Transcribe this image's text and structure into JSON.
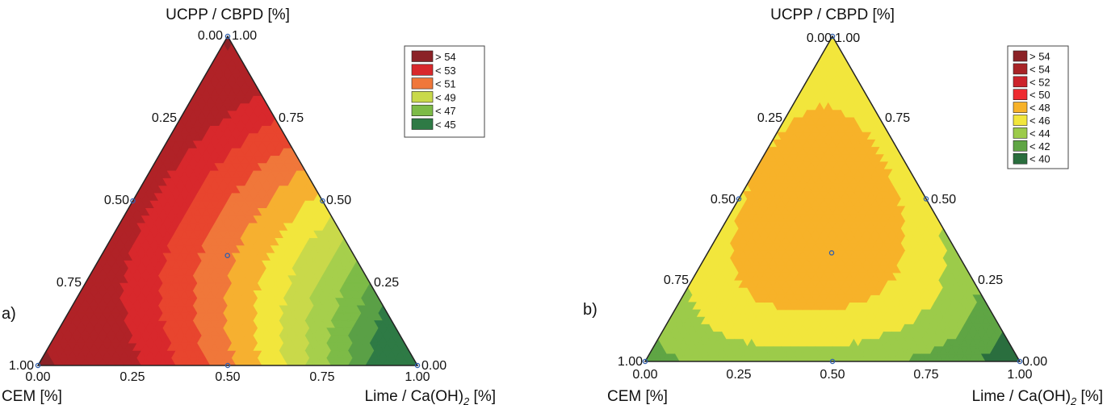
{
  "chart_data": [
    {
      "type": "ternary-contour",
      "panel_label": "a)",
      "top_axis_title": "UCPP / CBPD [%]",
      "left_axis_title": "CEM [%]",
      "right_axis_title": "Lime / Ca(OH)",
      "right_axis_subscript": "2",
      "right_axis_suffix": " [%]",
      "tick_labels": {
        "top_left": "0.00",
        "top_right": "1.00",
        "left_025": "0.25",
        "left_050": "0.50",
        "left_075": "0.75",
        "right_075": "0.75",
        "right_050": "0.50",
        "right_025": "0.25",
        "bottom_000": "0.00",
        "bottom_025": "0.25",
        "bottom_050": "0.50",
        "bottom_075": "0.75",
        "bottom_100": "1.00",
        "left_corner": "1.00",
        "right_corner": "0.00"
      },
      "legend": [
        {
          "label": "> 54",
          "color": "#8b2227"
        },
        {
          "label": "< 53",
          "color": "#d8282c"
        },
        {
          "label": "< 51",
          "color": "#f0773a"
        },
        {
          "label": "< 49",
          "color": "#c9d94a"
        },
        {
          "label": "< 47",
          "color": "#7dbb47"
        },
        {
          "label": "< 45",
          "color": "#2e7a45"
        }
      ],
      "levels": [
        {
          "value": 45,
          "color": "#2e7a45"
        },
        {
          "value": 46,
          "color": "#5aa046"
        },
        {
          "value": 47,
          "color": "#7dbb47"
        },
        {
          "value": 48,
          "color": "#a6cf4c"
        },
        {
          "value": 49,
          "color": "#c9d94a"
        },
        {
          "value": 50,
          "color": "#f2e63c"
        },
        {
          "value": 51,
          "color": "#f6b030"
        },
        {
          "value": 52,
          "color": "#f0773a"
        },
        {
          "value": 53,
          "color": "#e8452e"
        },
        {
          "value": 54,
          "color": "#d8282c"
        },
        {
          "value": 56,
          "color": "#b02227"
        },
        {
          "value": 100,
          "color": "#8b2227"
        }
      ],
      "design_points": [
        {
          "top": 1,
          "left": 0,
          "right": 0
        },
        {
          "top": 0,
          "left": 1,
          "right": 0
        },
        {
          "top": 0,
          "left": 0,
          "right": 1
        },
        {
          "top": 0.5,
          "left": 0.5,
          "right": 0
        },
        {
          "top": 0.5,
          "left": 0,
          "right": 0.5
        },
        {
          "top": 0,
          "left": 0.5,
          "right": 0.5
        },
        {
          "top": 0.333,
          "left": 0.333,
          "right": 0.333
        }
      ]
    },
    {
      "type": "ternary-contour",
      "panel_label": "b)",
      "top_axis_title": "UCPP / CBPD [%]",
      "left_axis_title": "CEM [%]",
      "right_axis_title": "Lime / Ca(OH)",
      "right_axis_subscript": "2",
      "right_axis_suffix": " [%]",
      "tick_labels": {
        "top_left": "0.00",
        "top_right": "1.00",
        "left_025": "0.25",
        "left_050": "0.50",
        "left_075": "0.75",
        "right_075": "0.75",
        "right_050": "0.50",
        "right_025": "0.25",
        "bottom_000": "0.00",
        "bottom_025": "0.25",
        "bottom_050": "0.50",
        "bottom_075": "0.75",
        "bottom_100": "1.00",
        "left_corner": "1.00",
        "right_corner": "0.00"
      },
      "legend": [
        {
          "label": "> 54",
          "color": "#8b2227"
        },
        {
          "label": "< 54",
          "color": "#a82326"
        },
        {
          "label": "< 52",
          "color": "#cc232b"
        },
        {
          "label": "< 50",
          "color": "#ee2b30"
        },
        {
          "label": "< 48",
          "color": "#f7b229"
        },
        {
          "label": "< 46",
          "color": "#f2e63c"
        },
        {
          "label": "< 44",
          "color": "#9ccb4a"
        },
        {
          "label": "< 42",
          "color": "#5fa544"
        },
        {
          "label": "< 40",
          "color": "#2a6e3e"
        }
      ],
      "levels": [
        {
          "value": 40,
          "color": "#2a6e3e"
        },
        {
          "value": 42,
          "color": "#5fa544"
        },
        {
          "value": 44,
          "color": "#9ccb4a"
        },
        {
          "value": 46,
          "color": "#f2e63c"
        },
        {
          "value": 48,
          "color": "#f7b229"
        },
        {
          "value": 50,
          "color": "#ee2b30"
        },
        {
          "value": 52,
          "color": "#cc232b"
        },
        {
          "value": 54,
          "color": "#a82326"
        },
        {
          "value": 100,
          "color": "#8b2227"
        }
      ],
      "design_points": [
        {
          "top": 1,
          "left": 0,
          "right": 0
        },
        {
          "top": 0,
          "left": 1,
          "right": 0
        },
        {
          "top": 0,
          "left": 0,
          "right": 1
        },
        {
          "top": 0.5,
          "left": 0.5,
          "right": 0
        },
        {
          "top": 0.5,
          "left": 0,
          "right": 0.5
        },
        {
          "top": 0,
          "left": 0.5,
          "right": 0.5
        },
        {
          "top": 0.333,
          "left": 0.333,
          "right": 0.333
        }
      ]
    }
  ]
}
